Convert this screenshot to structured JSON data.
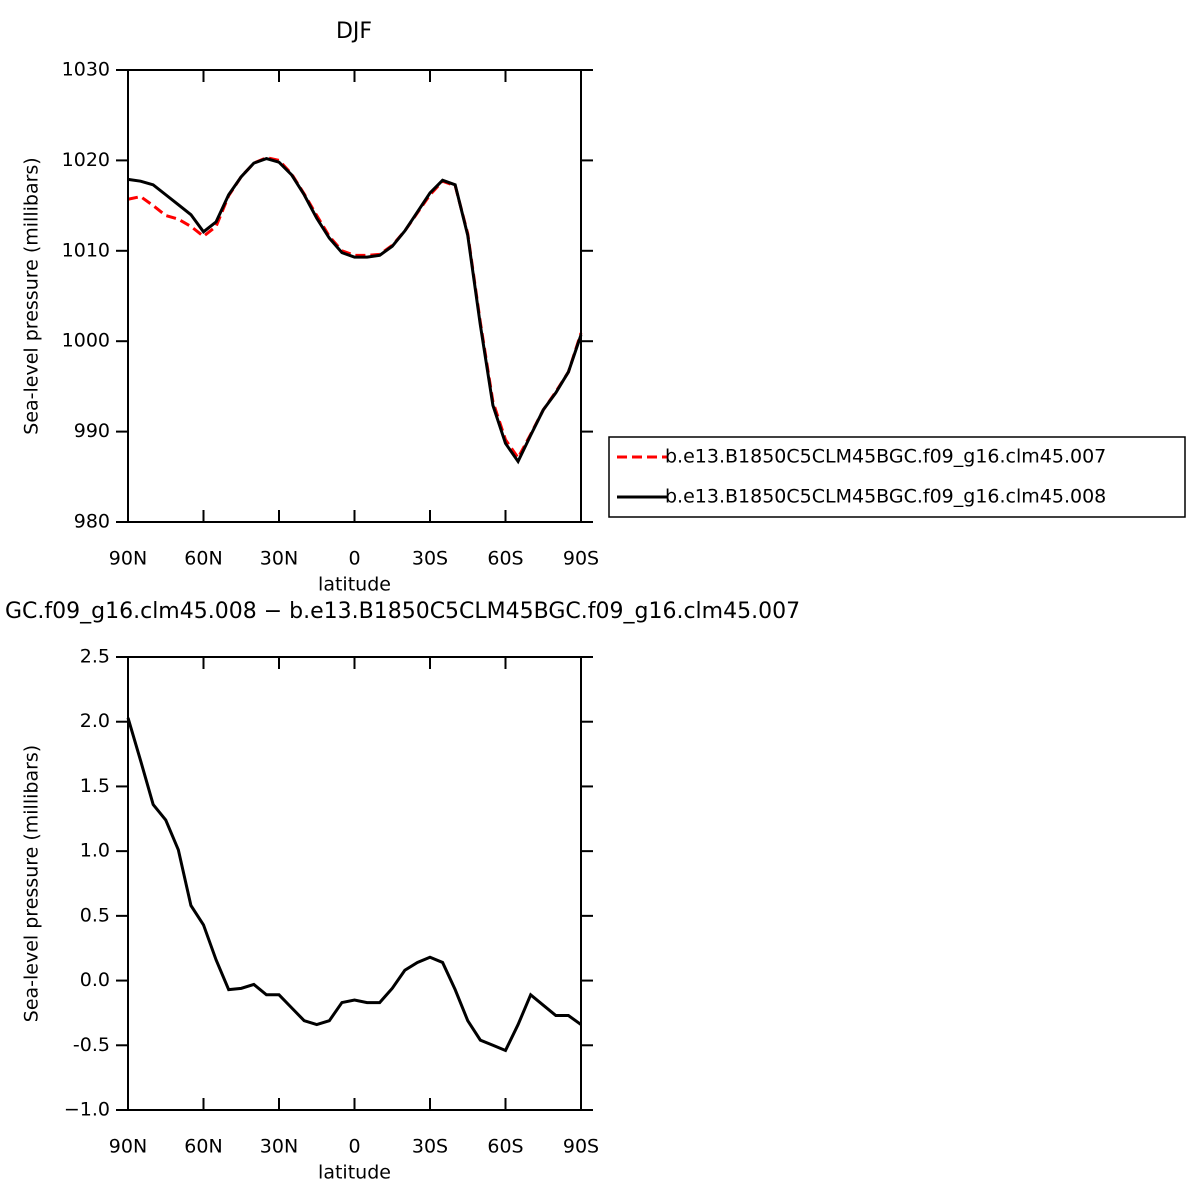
{
  "chart_data": [
    {
      "type": "line",
      "title": "DJF",
      "x_label": "latitude",
      "y_label": "Sea-level pressure (millibars)",
      "x": [
        90,
        85,
        80,
        75,
        70,
        65,
        60,
        55,
        50,
        45,
        40,
        35,
        30,
        25,
        20,
        15,
        10,
        5,
        0,
        -5,
        -10,
        -15,
        -20,
        -25,
        -30,
        -35,
        -40,
        -45,
        -50,
        -55,
        -60,
        -65,
        -70,
        -75,
        -80,
        -85,
        -90
      ],
      "series": [
        {
          "name": "b.e13.B1850C5CLM45BGC.f09_g16.clm45.007",
          "color": "#ff0000",
          "line_style": "dashed",
          "values": [
            1015.7,
            1016.0,
            1015.0,
            1013.9,
            1013.5,
            1012.7,
            1011.6,
            1012.7,
            1016.1,
            1018.2,
            1019.7,
            1020.3,
            1020.0,
            1018.5,
            1016.3,
            1013.9,
            1011.6,
            1010.0,
            1009.5,
            1009.5,
            1009.6,
            1010.6,
            1012.2,
            1014.2,
            1016.2,
            1017.7,
            1017.2,
            1011.9,
            1002.1,
            993.3,
            989.1,
            987.1,
            989.7,
            992.4,
            994.4,
            996.6,
            1000.9
          ]
        },
        {
          "name": "b.e13.B1850C5CLM45BGC.f09_g16.clm45.008",
          "color": "#000000",
          "line_style": "solid",
          "values": [
            1017.9,
            1017.7,
            1017.3,
            1016.2,
            1015.1,
            1014.0,
            1012.1,
            1013.2,
            1016.2,
            1018.2,
            1019.7,
            1020.2,
            1019.8,
            1018.4,
            1016.2,
            1013.6,
            1011.4,
            1009.8,
            1009.3,
            1009.3,
            1009.5,
            1010.5,
            1012.2,
            1014.3,
            1016.4,
            1017.8,
            1017.3,
            1011.7,
            1001.8,
            992.9,
            988.7,
            986.7,
            989.6,
            992.4,
            994.3,
            996.6,
            1000.7
          ]
        }
      ],
      "xlim": [
        90,
        -90
      ],
      "xticks": [
        {
          "value": 90,
          "label": "90N"
        },
        {
          "value": 60,
          "label": "60N"
        },
        {
          "value": 30,
          "label": "30N"
        },
        0,
        {
          "value": -30,
          "label": "30S"
        },
        {
          "value": -60,
          "label": "60S"
        },
        {
          "value": -90,
          "label": "90S"
        }
      ],
      "ylim": [
        980,
        1030
      ],
      "yticks": [
        980,
        990,
        1000,
        1010,
        1020,
        1030
      ],
      "legend": "right"
    },
    {
      "type": "line",
      "title": "GC.f09_g16.clm45.008 − b.e13.B1850C5CLM45BGC.f09_g16.clm45.007",
      "x_label": "latitude",
      "y_label": "Sea-level pressure (millibars)",
      "x": [
        90,
        85,
        80,
        75,
        70,
        65,
        60,
        55,
        50,
        45,
        40,
        35,
        30,
        25,
        20,
        15,
        10,
        5,
        0,
        -5,
        -10,
        -15,
        -20,
        -25,
        -30,
        -35,
        -40,
        -45,
        -50,
        -55,
        -60,
        -65,
        -70,
        -75,
        -80,
        -85,
        -90
      ],
      "series": [
        {
          "color": "#000000",
          "line_style": "solid",
          "values": [
            2.03,
            1.7,
            1.36,
            1.24,
            1.01,
            0.58,
            0.43,
            0.16,
            -0.07,
            -0.06,
            -0.03,
            -0.11,
            -0.11,
            -0.21,
            -0.31,
            -0.34,
            -0.31,
            -0.17,
            -0.15,
            -0.17,
            -0.17,
            -0.06,
            0.08,
            0.14,
            0.18,
            0.14,
            -0.07,
            -0.31,
            -0.46,
            -0.5,
            -0.54,
            -0.34,
            -0.11,
            -0.19,
            -0.27,
            -0.27,
            -0.34
          ]
        }
      ],
      "xlim": [
        90,
        -90
      ],
      "xticks": [
        {
          "value": 90,
          "label": "90N"
        },
        {
          "value": 60,
          "label": "60N"
        },
        {
          "value": 30,
          "label": "30N"
        },
        0,
        {
          "value": -30,
          "label": "30S"
        },
        {
          "value": -60,
          "label": "60S"
        },
        {
          "value": -90,
          "label": "90S"
        }
      ],
      "ylim": [
        -1.0,
        2.5
      ],
      "yticks": [
        {
          "value": -1.0,
          "label": "−1.0"
        },
        -0.5,
        {
          "value": 0.0,
          "label": "0.0"
        },
        0.5,
        {
          "value": 1.0,
          "label": "1.0"
        },
        1.5,
        {
          "value": 2.0,
          "label": "2.0"
        },
        2.5
      ]
    }
  ]
}
